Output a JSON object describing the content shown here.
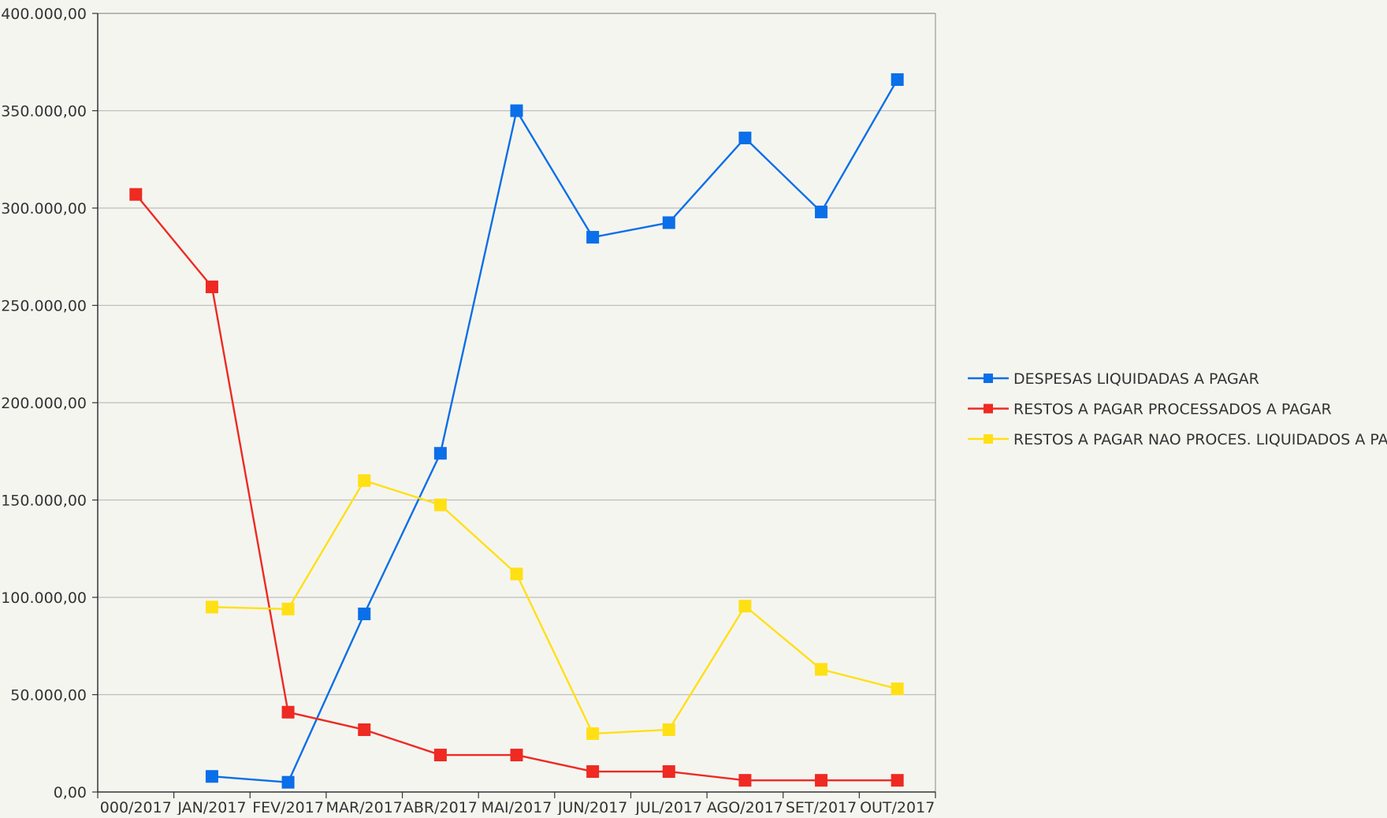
{
  "chart_data": {
    "type": "line",
    "categories": [
      "000/2017",
      "JAN/2017",
      "FEV/2017",
      "MAR/2017",
      "ABR/2017",
      "MAI/2017",
      "JUN/2017",
      "JUL/2017",
      "AGO/2017",
      "SET/2017",
      "OUT/2017"
    ],
    "y_ticks": [
      "0,00",
      "50.000,00",
      "100.000,00",
      "150.000,00",
      "200.000,00",
      "250.000,00",
      "300.000,00",
      "350.000,00",
      "400.000,00"
    ],
    "ylim": [
      0,
      400000
    ],
    "grid": true,
    "legend_position": "right",
    "series": [
      {
        "name": "DESPESAS LIQUIDADAS A PAGAR",
        "color": "#0a6fe8",
        "values": [
          null,
          8000,
          5000,
          91500,
          174000,
          350000,
          285000,
          292500,
          336000,
          298000,
          366000
        ]
      },
      {
        "name": "RESTOS A PAGAR PROCESSADOS A PAGAR",
        "color": "#ee2a22",
        "values": [
          307000,
          259500,
          41000,
          32000,
          19000,
          19000,
          10500,
          10500,
          6000,
          6000,
          6000
        ]
      },
      {
        "name": "RESTOS A PAGAR NAO PROCES. LIQUIDADOS A PAGAR",
        "color": "#ffe014",
        "values": [
          null,
          95000,
          94000,
          160000,
          147500,
          112000,
          30000,
          32000,
          95500,
          63000,
          53000
        ]
      }
    ]
  }
}
